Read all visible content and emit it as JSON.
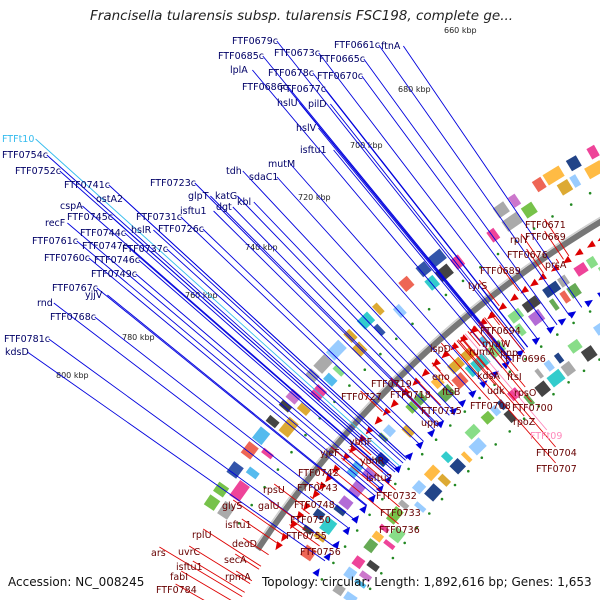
{
  "title": "Francisella tularensis subsp. tularensis FSC198, complete ge...",
  "accession": "Accession: NC_008245",
  "topology": "Topology: circular; Length: 1,892,616 bp; Genes: 1,653",
  "colors": {
    "forward": "#0000dd",
    "reverse": "#dd0000",
    "trna_fwd": "#33bbee",
    "trna_rev": "#ff88bb",
    "backbone": "#777777",
    "tick": "#228822"
  },
  "kbp_labels": [
    "680 kbp",
    "700 kbp",
    "720 kbp",
    "740 kbp",
    "760 kbp",
    "780 kbp",
    "800 kbp",
    "660 kbp"
  ],
  "forward_genes": [
    "FTF0679c",
    "FTF0673c",
    "FTF0661c",
    "ftnA",
    "FTF0685c",
    "FTF0665c",
    "lplA",
    "FTF0678c",
    "FTF0670c",
    "FTF0686c",
    "FTF0677c",
    "hslU",
    "pilD",
    "hslV",
    "FTFt10",
    "isftu1",
    "FTF0754c",
    "mutM",
    "FTF0752c",
    "tdh",
    "sdaC1",
    "FTF0741c",
    "FTF0723c",
    "ostA2",
    "glpT",
    "katG",
    "cspA",
    "isftu1",
    "recF",
    "FTF0745c",
    "FTF0731c",
    "dgt",
    "kbl",
    "FTF0744c",
    "hslR",
    "FTF0726c",
    "FTF0761c",
    "FTF0747c",
    "FTF0760c",
    "FTF0746c",
    "FTF0737c",
    "FTF0749c",
    "FTF0767c",
    "rnd",
    "yjjV",
    "FTF0768c",
    "FTF0781c",
    "kdsD"
  ],
  "reverse_genes": [
    "FTF0671",
    "rplY",
    "FTF0669",
    "FTF0676",
    "prsA",
    "FTF0689",
    "tyrS",
    "FTF0694",
    "mraW",
    "rumA",
    "pnp",
    "FTF0696",
    "ispD",
    "kdsA",
    "ftsI",
    "eno",
    "udk",
    "rpsO",
    "ftsB",
    "FTF0708",
    "FTF0700",
    "FTF0719",
    "FTF0718",
    "FTF0715",
    "rpoZ",
    "FTF0727",
    "upp",
    "FTFt09",
    "FTF0704",
    "FTF0707",
    "ybhF",
    "yjeF",
    "ybhR",
    "FTF0742",
    "isftu2",
    "FTF0743",
    "FTF0732",
    "rpsU",
    "FTF0748",
    "FTF0733",
    "galU",
    "FTF0750",
    "FTF0736",
    "glyS",
    "FTF0755",
    "FTF0756",
    "isftu1",
    "rplU",
    "deoD",
    "ars",
    "uvrC",
    "isftu1",
    "secA",
    "fabI",
    "rpmA",
    "FTF0784"
  ]
}
